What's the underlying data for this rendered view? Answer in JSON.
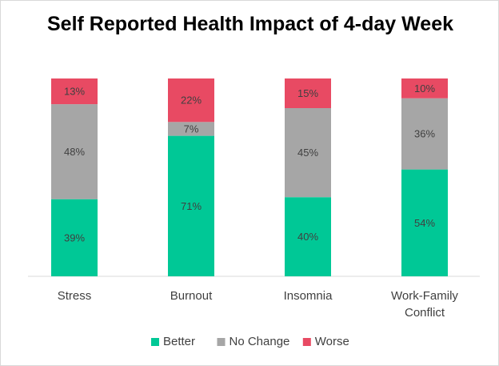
{
  "chart_data": {
    "type": "bar",
    "stacked": true,
    "normalized": true,
    "title": "Self Reported Health Impact of 4-day Week",
    "categories": [
      [
        "Stress"
      ],
      [
        "Burnout"
      ],
      [
        "Insomnia"
      ],
      [
        "Work-Family",
        "Conflict"
      ]
    ],
    "series": [
      {
        "name": "Better",
        "color": "#00c896",
        "values": [
          39,
          71,
          40,
          54
        ],
        "labels": [
          "39%",
          "71%",
          "40%",
          "54%"
        ]
      },
      {
        "name": "No Change",
        "color": "#a6a6a6",
        "values": [
          48,
          7,
          45,
          36
        ],
        "labels": [
          "48%",
          "7%",
          "45%",
          "36%"
        ]
      },
      {
        "name": "Worse",
        "color": "#e84a63",
        "values": [
          13,
          22,
          15,
          10
        ],
        "labels": [
          "13%",
          "22%",
          "15%",
          "10%"
        ]
      }
    ],
    "ylim": [
      0,
      100
    ],
    "grid": false,
    "legend_position": "bottom"
  }
}
